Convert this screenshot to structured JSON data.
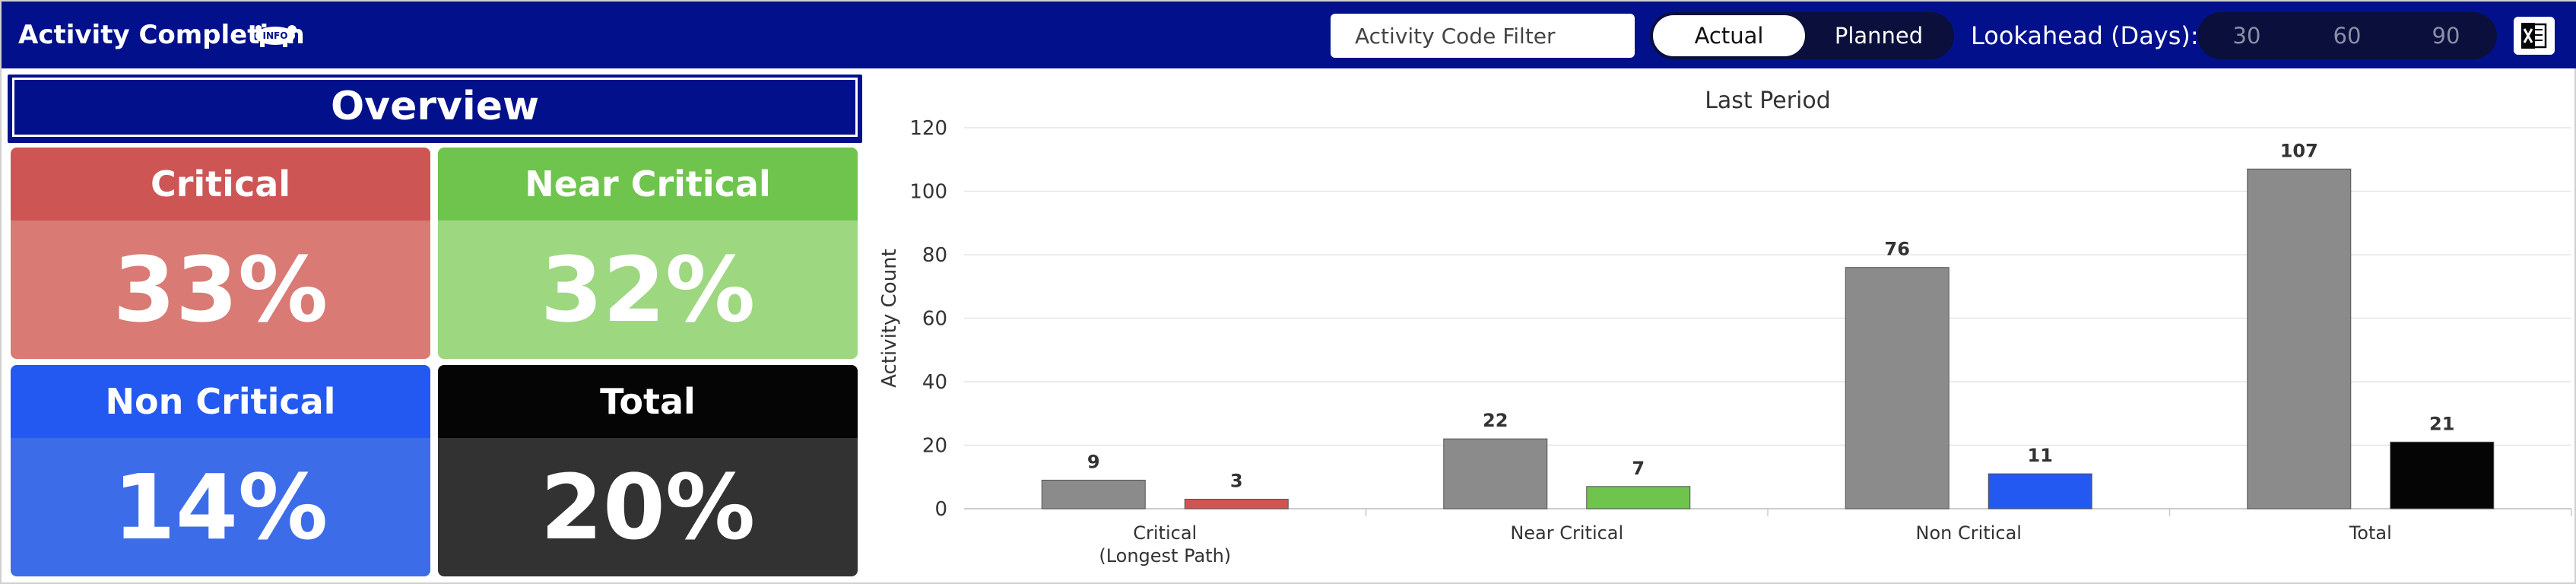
{
  "header": {
    "title": "Activity Completion",
    "info_badge": "INFO",
    "info_icon": "hippo-info-icon",
    "filter_placeholder": "Activity Code Filter",
    "mode_options": [
      "Actual",
      "Planned"
    ],
    "mode_selected": "Actual",
    "lookahead_label": "Lookahead (Days):",
    "lookahead_options": [
      "30",
      "60",
      "90"
    ],
    "export_icon": "excel-icon",
    "colors": {
      "bar": "#02118b",
      "toggle_bg": "#0b0f3c"
    }
  },
  "overview": {
    "title": "Overview",
    "cards": [
      {
        "label": "Critical",
        "value": "33%",
        "head_color": "#cd5654",
        "body_color": "#d97a74"
      },
      {
        "label": "Near Critical",
        "value": "32%",
        "head_color": "#6fc44e",
        "body_color": "#9dd780"
      },
      {
        "label": "Non Critical",
        "value": "14%",
        "head_color": "#2459f1",
        "body_color": "#3c6ce8"
      },
      {
        "label": "Total",
        "value": "20%",
        "head_color": "#050505",
        "body_color": "#323232"
      }
    ]
  },
  "chart_data": {
    "type": "bar",
    "title": "Last Period",
    "xlabel": "",
    "ylabel": "Activity Count",
    "categories": [
      [
        "Critical",
        "(Longest Path)"
      ],
      [
        "Near Critical"
      ],
      [
        "Non Critical"
      ],
      [
        "Total"
      ]
    ],
    "ylim": [
      0,
      120
    ],
    "yticks": [
      0,
      20,
      40,
      60,
      80,
      100,
      120
    ],
    "grid": true,
    "legend": "none",
    "series": [
      {
        "values": [
          9,
          22,
          76,
          107
        ],
        "colors": [
          "#8b8b8b",
          "#8b8b8b",
          "#8b8b8b",
          "#8b8b8b"
        ]
      },
      {
        "values": [
          3,
          7,
          11,
          21
        ],
        "colors": [
          "#d05450",
          "#6fc44e",
          "#2459f1",
          "#050505"
        ]
      }
    ]
  }
}
